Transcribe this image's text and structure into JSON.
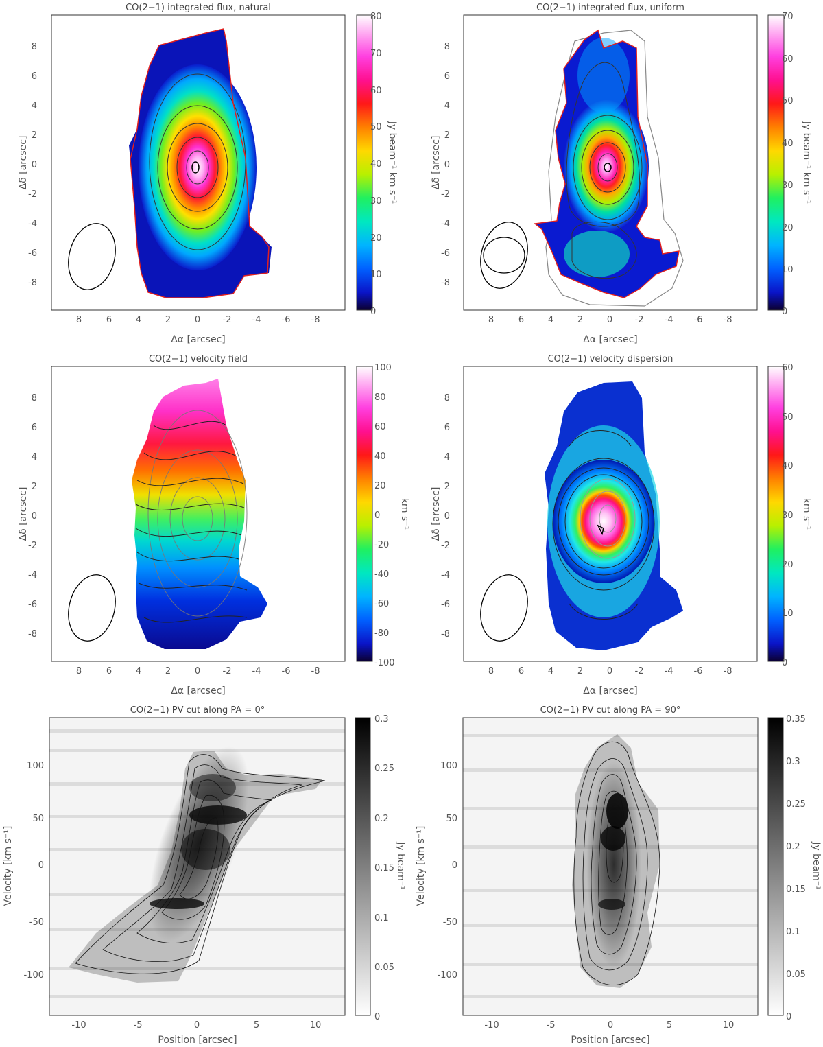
{
  "panels": [
    {
      "title": "CO(2−1) integrated flux, natural",
      "xlabel": "Δα [arcsec]",
      "ylabel": "Δδ [arcsec]",
      "cbar_label": "Jy beam⁻¹ km s⁻¹",
      "cmap": "rainbow",
      "xticks": [
        8,
        6,
        4,
        2,
        0,
        -2,
        -4,
        -6,
        -8
      ],
      "yticks": [
        8,
        6,
        4,
        2,
        0,
        -2,
        -4,
        -6,
        -8
      ],
      "cbar_ticks": [
        0,
        10,
        20,
        30,
        40,
        50,
        60,
        70,
        80
      ]
    },
    {
      "title": "CO(2−1) integrated flux, uniform",
      "xlabel": "Δα [arcsec]",
      "ylabel": "Δδ [arcsec]",
      "cbar_label": "Jy beam⁻¹ km s⁻¹",
      "cmap": "rainbow",
      "xticks": [
        8,
        6,
        4,
        2,
        0,
        -2,
        -4,
        -6,
        -8
      ],
      "yticks": [
        8,
        6,
        4,
        2,
        0,
        -2,
        -4,
        -6,
        -8
      ],
      "cbar_ticks": [
        0,
        10,
        20,
        30,
        40,
        50,
        60,
        70
      ]
    },
    {
      "title": "CO(2−1) velocity field",
      "xlabel": "Δα [arcsec]",
      "ylabel": "Δδ [arcsec]",
      "cbar_label": "km s⁻¹",
      "cmap": "rainbow",
      "xticks": [
        8,
        6,
        4,
        2,
        0,
        -2,
        -4,
        -6,
        -8
      ],
      "yticks": [
        8,
        6,
        4,
        2,
        0,
        -2,
        -4,
        -6,
        -8
      ],
      "cbar_ticks": [
        -100,
        -80,
        -60,
        -40,
        -20,
        0,
        20,
        40,
        60,
        80,
        100
      ]
    },
    {
      "title": "CO(2−1) velocity dispersion",
      "xlabel": "Δα [arcsec]",
      "ylabel": "Δδ [arcsec]",
      "cbar_label": "km s⁻¹",
      "cmap": "rainbow",
      "xticks": [
        8,
        6,
        4,
        2,
        0,
        -2,
        -4,
        -6,
        -8
      ],
      "yticks": [
        8,
        6,
        4,
        2,
        0,
        -2,
        -4,
        -6,
        -8
      ],
      "cbar_ticks": [
        0,
        10,
        20,
        30,
        40,
        50,
        60
      ]
    },
    {
      "title": "CO(2−1) PV cut along PA = 0°",
      "xlabel": "Position [arcsec]",
      "ylabel": "Velocity [km s⁻¹]",
      "cbar_label": "Jy beam⁻¹",
      "cmap": "gray",
      "xticks": [
        -10,
        -5,
        0,
        5,
        10
      ],
      "yticks": [
        100,
        50,
        0,
        -50,
        -100
      ],
      "cbar_ticks": [
        0,
        0.05,
        0.1,
        0.15,
        0.2,
        0.25,
        0.3
      ]
    },
    {
      "title": "CO(2−1) PV cut along PA = 90°",
      "xlabel": "Position [arcsec]",
      "ylabel": "Velocity [km s⁻¹]",
      "cbar_label": "Jy beam⁻¹",
      "cmap": "gray",
      "xticks": [
        -10,
        -5,
        0,
        5,
        10
      ],
      "yticks": [
        100,
        50,
        0,
        -50,
        -100
      ],
      "cbar_ticks": [
        0,
        0.05,
        0.1,
        0.15,
        0.2,
        0.25,
        0.3,
        0.35
      ]
    }
  ],
  "chart_data": [
    {
      "type": "heatmap",
      "title": "CO(2−1) integrated flux, natural",
      "xlabel": "Δα [arcsec]",
      "ylabel": "Δδ [arcsec]",
      "colorbar_label": "Jy beam⁻¹ km s⁻¹",
      "xlim": [
        10,
        -10
      ],
      "ylim": [
        -10,
        10
      ],
      "clim": [
        0,
        80
      ],
      "peak": {
        "x": 0,
        "y": -0.4,
        "value": 80
      },
      "beam": {
        "x": 7.5,
        "y": -6.3
      }
    },
    {
      "type": "heatmap",
      "title": "CO(2−1) integrated flux, uniform",
      "xlabel": "Δα [arcsec]",
      "ylabel": "Δδ [arcsec]",
      "colorbar_label": "Jy beam⁻¹ km s⁻¹",
      "xlim": [
        10,
        -10
      ],
      "ylim": [
        -10,
        10
      ],
      "clim": [
        0,
        70
      ],
      "peak": {
        "x": 0.2,
        "y": -0.4,
        "value": 70
      },
      "beam": {
        "x": 7.5,
        "y": -6.3
      }
    },
    {
      "type": "heatmap",
      "title": "CO(2−1) velocity field",
      "xlabel": "Δα [arcsec]",
      "ylabel": "Δδ [arcsec]",
      "colorbar_label": "km s⁻¹",
      "xlim": [
        10,
        -10
      ],
      "ylim": [
        -10,
        10
      ],
      "clim": [
        -100,
        100
      ],
      "velocity_gradient": {
        "north": 90,
        "south": -90
      },
      "beam": {
        "x": 7.5,
        "y": -6.3
      }
    },
    {
      "type": "heatmap",
      "title": "CO(2−1) velocity dispersion",
      "xlabel": "Δα [arcsec]",
      "ylabel": "Δδ [arcsec]",
      "colorbar_label": "km s⁻¹",
      "xlim": [
        10,
        -10
      ],
      "ylim": [
        -10,
        10
      ],
      "clim": [
        0,
        60
      ],
      "peak": {
        "x": 0,
        "y": -0.8,
        "value": 60
      },
      "beam": {
        "x": 7.5,
        "y": -6.3
      }
    },
    {
      "type": "heatmap",
      "title": "CO(2−1) PV cut along PA = 0°",
      "xlabel": "Position [arcsec]",
      "ylabel": "Velocity [km s⁻¹]",
      "colorbar_label": "Jy beam⁻¹",
      "xlim": [
        -12.5,
        12.5
      ],
      "ylim": [
        -140,
        140
      ],
      "clim": [
        0,
        0.3
      ],
      "ridge": [
        [
          -6,
          -90
        ],
        [
          -3,
          -40
        ],
        [
          0,
          0
        ],
        [
          1.5,
          20
        ],
        [
          3,
          50
        ],
        [
          6,
          80
        ],
        [
          10,
          85
        ]
      ]
    },
    {
      "type": "heatmap",
      "title": "CO(2−1) PV cut along PA = 90°",
      "xlabel": "Position [arcsec]",
      "ylabel": "Velocity [km s⁻¹]",
      "colorbar_label": "Jy beam⁻¹",
      "xlim": [
        -12.5,
        12.5
      ],
      "ylim": [
        -140,
        140
      ],
      "clim": [
        0,
        0.35
      ],
      "ridge": [
        [
          0,
          -110
        ],
        [
          0,
          -40
        ],
        [
          0,
          0
        ],
        [
          0.5,
          25
        ],
        [
          0.5,
          50
        ],
        [
          0,
          110
        ]
      ]
    }
  ]
}
